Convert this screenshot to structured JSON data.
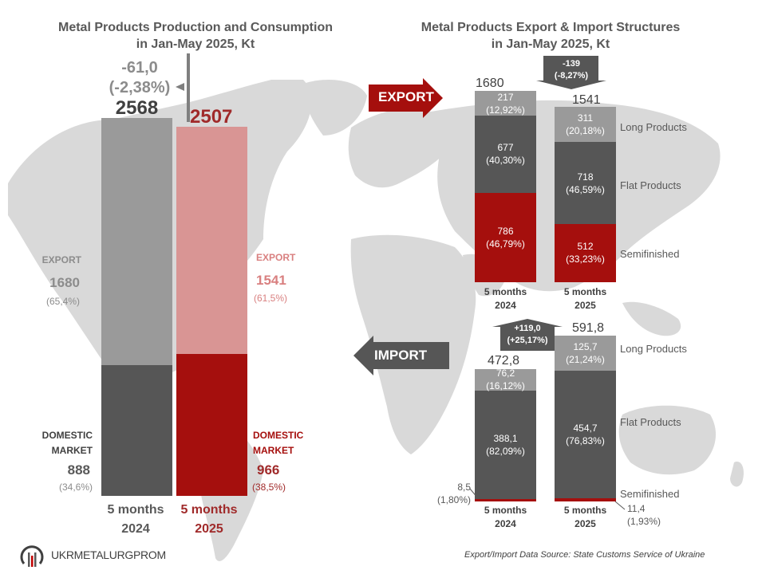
{
  "colors": {
    "gray_light": "#9a9a9a",
    "gray_dark": "#565656",
    "pink": "#d99594",
    "red": "#a50f0d",
    "map": "#d9d9d9",
    "text_gray": "#595959"
  },
  "left_panel": {
    "title_line1": "Metal Products Production and Consumption",
    "title_line2": "in Jan-May 2025, Kt",
    "change_value": "-61,0",
    "change_pct": "(-2,38%)",
    "total_2024": "2568",
    "total_2025": "2507",
    "export_label_2024": "EXPORT",
    "export_value_2024": "1680",
    "export_pct_2024": "(65,4%)",
    "export_label_2025": "EXPORT",
    "export_value_2025": "1541",
    "export_pct_2025": "(61,5%)",
    "domestic_label_2024_line1": "DOMESTIC",
    "domestic_label_2024_line2": "MARKET",
    "domestic_value_2024": "888",
    "domestic_pct_2024": "(34,6%)",
    "domestic_label_2025_line1": "DOMESTIC",
    "domestic_label_2025_line2": "MARKET",
    "domestic_value_2025": "966",
    "domestic_pct_2025": "(38,5%)",
    "period_2024_line1": "5 months",
    "period_2024_line2": "2024",
    "period_2025_line1": "5 months",
    "period_2025_line2": "2025"
  },
  "right_panel": {
    "title_line1": "Metal Products Export & Import Structures",
    "title_line2": "in Jan-May 2025, Kt",
    "export_arrow_label": "EXPORT",
    "import_arrow_label": "IMPORT",
    "export_change_value": "-139",
    "export_change_pct": "(-8,27%)",
    "import_change_value": "+119,0",
    "import_change_pct": "(+25,17%)",
    "export_total_2024": "1680",
    "export_total_2025": "1541",
    "import_total_2024": "472,8",
    "import_total_2025": "591,8",
    "legend_long": "Long Products",
    "legend_flat": "Flat Products",
    "legend_semi": "Semifinished",
    "period_2024_line1": "5 months",
    "period_2024_line2": "2024",
    "period_2025_line1": "5 months",
    "period_2025_line2": "2025",
    "export_2024": {
      "long_value": "217",
      "long_pct": "(12,92%)",
      "flat_value": "677",
      "flat_pct": "(40,30%)",
      "semi_value": "786",
      "semi_pct": "(46,79%)"
    },
    "export_2025": {
      "long_value": "311",
      "long_pct": "(20,18%)",
      "flat_value": "718",
      "flat_pct": "(46,59%)",
      "semi_value": "512",
      "semi_pct": "(33,23%)"
    },
    "import_2024": {
      "long_value": "76,2",
      "long_pct": "(16,12%)",
      "flat_value": "388,1",
      "flat_pct": "(82,09%)",
      "semi_value": "8,5",
      "semi_pct": "(1,80%)"
    },
    "import_2025": {
      "long_value": "125,7",
      "long_pct": "(21,24%)",
      "flat_value": "454,7",
      "flat_pct": "(76,83%)",
      "semi_value": "11,4",
      "semi_pct": "(1,93%)"
    }
  },
  "footer": {
    "logo_text": "UKRMETALURGPROM",
    "source": "Export/Import Data Source: State Customs Service of Ukraine"
  },
  "chart_data": [
    {
      "type": "bar",
      "stacked": true,
      "title": "Metal Products Production and Consumption in Jan-May 2025, Kt",
      "categories": [
        "5 months 2024",
        "5 months 2025"
      ],
      "series": [
        {
          "name": "DOMESTIC MARKET",
          "values": [
            888,
            966
          ],
          "pct": [
            "34,6%",
            "38,5%"
          ]
        },
        {
          "name": "EXPORT",
          "values": [
            1680,
            1541
          ],
          "pct": [
            "65,4%",
            "61,5%"
          ]
        }
      ],
      "totals": [
        2568,
        2507
      ],
      "annotation": "-61,0 (-2,38%)",
      "xlabel": "",
      "ylabel": ""
    },
    {
      "type": "bar",
      "stacked": true,
      "title": "Metal Products Export Structure in Jan-May 2025, Kt",
      "categories": [
        "5 months 2024",
        "5 months 2025"
      ],
      "series": [
        {
          "name": "Semifinished",
          "values": [
            786,
            512
          ],
          "pct": [
            "46,79%",
            "33,23%"
          ]
        },
        {
          "name": "Flat Products",
          "values": [
            677,
            718
          ],
          "pct": [
            "40,30%",
            "46,59%"
          ]
        },
        {
          "name": "Long Products",
          "values": [
            217,
            311
          ],
          "pct": [
            "12,92%",
            "20,18%"
          ]
        }
      ],
      "totals": [
        1680,
        1541
      ],
      "annotation": "-139 (-8,27%)"
    },
    {
      "type": "bar",
      "stacked": true,
      "title": "Metal Products Import Structure in Jan-May 2025, Kt",
      "categories": [
        "5 months 2024",
        "5 months 2025"
      ],
      "series": [
        {
          "name": "Semifinished",
          "values": [
            8.5,
            11.4
          ],
          "pct": [
            "1,80%",
            "1,93%"
          ]
        },
        {
          "name": "Flat Products",
          "values": [
            388.1,
            454.7
          ],
          "pct": [
            "82,09%",
            "76,83%"
          ]
        },
        {
          "name": "Long Products",
          "values": [
            76.2,
            125.7
          ],
          "pct": [
            "16,12%",
            "21,24%"
          ]
        }
      ],
      "totals": [
        472.8,
        591.8
      ],
      "annotation": "+119,0 (+25,17%)"
    }
  ]
}
